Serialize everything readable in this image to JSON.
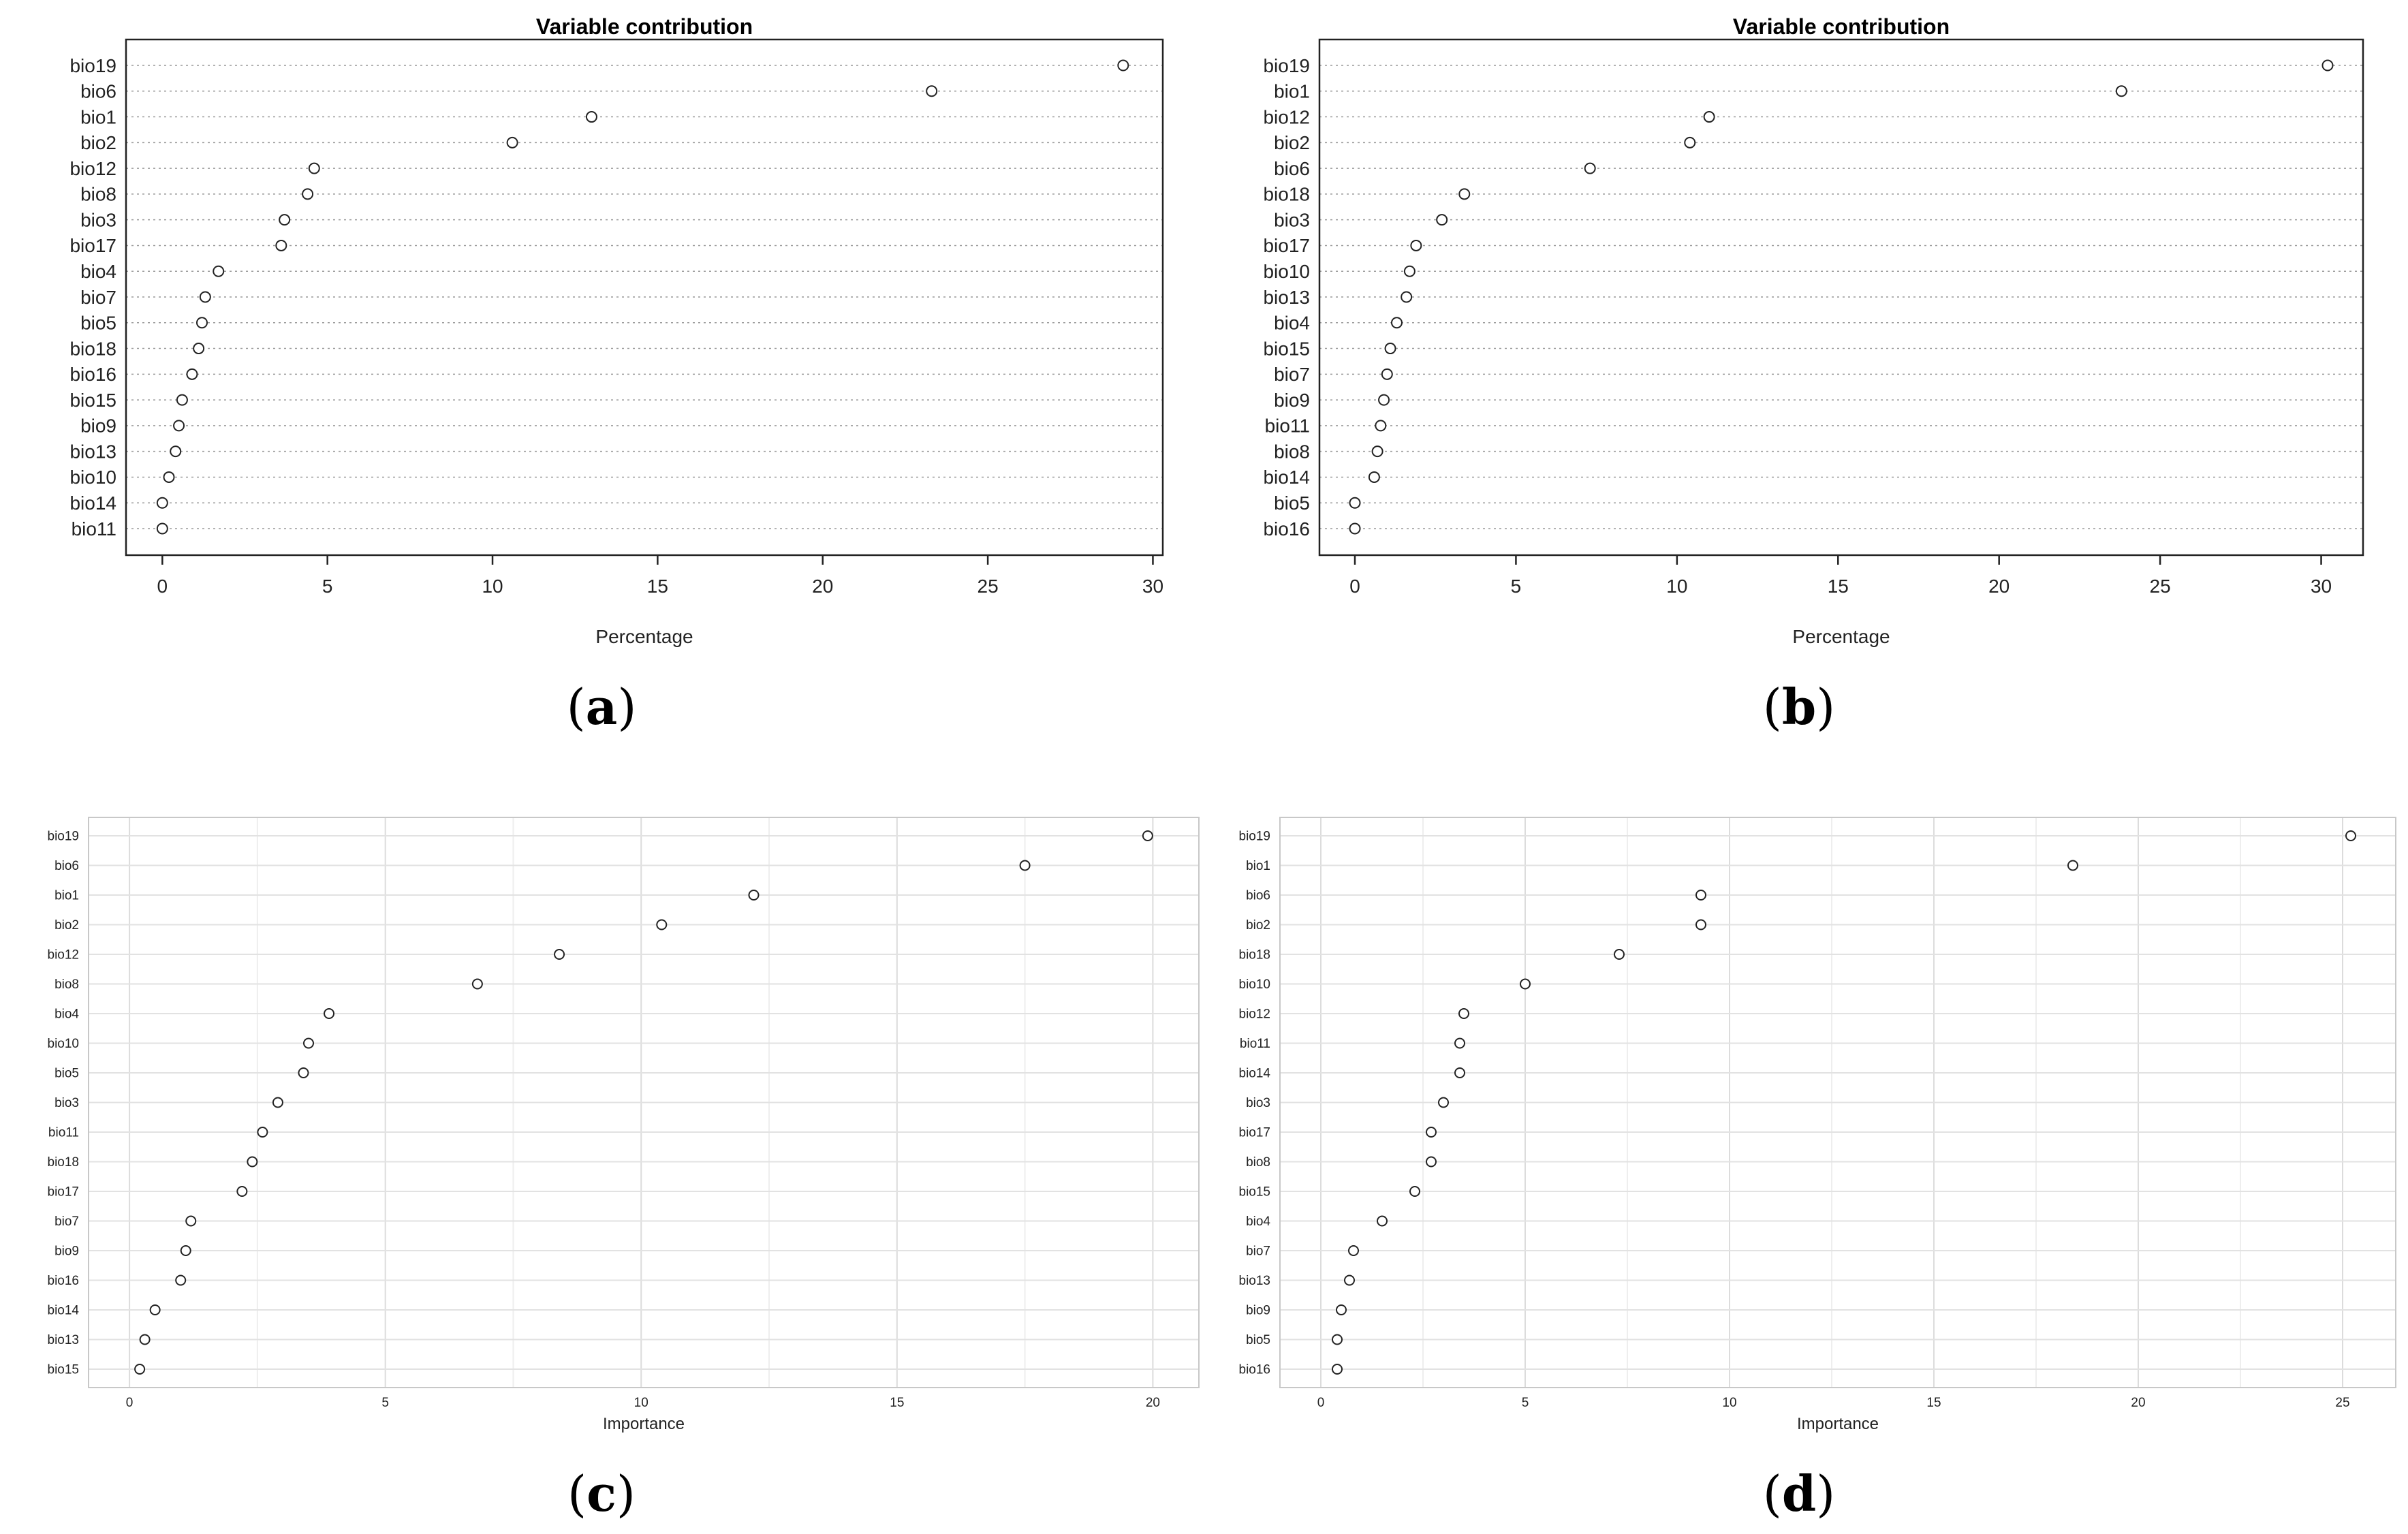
{
  "chart_data": [
    {
      "type": "scatter",
      "panel": "a",
      "title": "Variable contribution",
      "xlabel": "Percentage",
      "ylabel": "",
      "xlim": [
        -1.1,
        30.3
      ],
      "xticks": [
        0,
        5,
        10,
        15,
        20,
        25,
        30
      ],
      "grid": "horizontal dotted",
      "categories": [
        "bio19",
        "bio6",
        "bio1",
        "bio2",
        "bio12",
        "bio8",
        "bio3",
        "bio17",
        "bio4",
        "bio7",
        "bio5",
        "bio18",
        "bio16",
        "bio15",
        "bio9",
        "bio13",
        "bio10",
        "bio14",
        "bio11"
      ],
      "values": [
        29.1,
        23.3,
        13.0,
        10.6,
        4.6,
        4.4,
        3.7,
        3.6,
        1.7,
        1.3,
        1.2,
        1.1,
        0.9,
        0.6,
        0.5,
        0.4,
        0.2,
        0.0,
        0.0
      ]
    },
    {
      "type": "scatter",
      "panel": "b",
      "title": "Variable contribution",
      "xlabel": "Percentage",
      "ylabel": "",
      "xlim": [
        -1.1,
        31.3
      ],
      "xticks": [
        0,
        5,
        10,
        15,
        20,
        25,
        30
      ],
      "grid": "horizontal dotted",
      "categories": [
        "bio19",
        "bio1",
        "bio12",
        "bio2",
        "bio6",
        "bio18",
        "bio3",
        "bio17",
        "bio10",
        "bio13",
        "bio4",
        "bio15",
        "bio7",
        "bio9",
        "bio11",
        "bio8",
        "bio14",
        "bio5",
        "bio16"
      ],
      "values": [
        30.2,
        23.8,
        11.0,
        10.4,
        7.3,
        3.4,
        2.7,
        1.9,
        1.7,
        1.6,
        1.3,
        1.1,
        1.0,
        0.9,
        0.8,
        0.7,
        0.6,
        0.0,
        0.0
      ]
    },
    {
      "type": "scatter",
      "panel": "c",
      "title": "",
      "xlabel": "Importance",
      "ylabel": "",
      "xlim": [
        -0.8,
        20.9
      ],
      "xticks": [
        0,
        5,
        10,
        15,
        20
      ],
      "grid": "full light",
      "categories": [
        "bio19",
        "bio6",
        "bio1",
        "bio2",
        "bio12",
        "bio8",
        "bio4",
        "bio10",
        "bio5",
        "bio3",
        "bio11",
        "bio18",
        "bio17",
        "bio7",
        "bio9",
        "bio16",
        "bio14",
        "bio13",
        "bio15"
      ],
      "values": [
        19.9,
        17.5,
        12.2,
        10.4,
        8.4,
        6.8,
        3.9,
        3.5,
        3.4,
        2.9,
        2.6,
        2.4,
        2.2,
        1.2,
        1.1,
        1.0,
        0.5,
        0.3,
        0.2
      ]
    },
    {
      "type": "scatter",
      "panel": "d",
      "title": "",
      "xlabel": "Importance",
      "ylabel": "",
      "xlim": [
        -1.0,
        26.3
      ],
      "xticks": [
        0,
        5,
        10,
        15,
        20,
        25
      ],
      "grid": "full light",
      "categories": [
        "bio19",
        "bio1",
        "bio6",
        "bio2",
        "bio18",
        "bio10",
        "bio12",
        "bio11",
        "bio14",
        "bio3",
        "bio17",
        "bio8",
        "bio15",
        "bio4",
        "bio7",
        "bio13",
        "bio9",
        "bio5",
        "bio16"
      ],
      "values": [
        25.2,
        18.4,
        9.3,
        9.3,
        7.3,
        5.0,
        3.5,
        3.4,
        3.4,
        3.0,
        2.7,
        2.7,
        2.3,
        1.5,
        0.8,
        0.7,
        0.5,
        0.4,
        0.4
      ]
    }
  ],
  "labels": {
    "a": {
      "open": "(",
      "letter": "a",
      "close": ")"
    },
    "b": {
      "open": "(",
      "letter": "b",
      "close": ")"
    },
    "c": {
      "open": "(",
      "letter": "c",
      "close": ")"
    },
    "d": {
      "open": "(",
      "letter": "d",
      "close": ")"
    }
  }
}
